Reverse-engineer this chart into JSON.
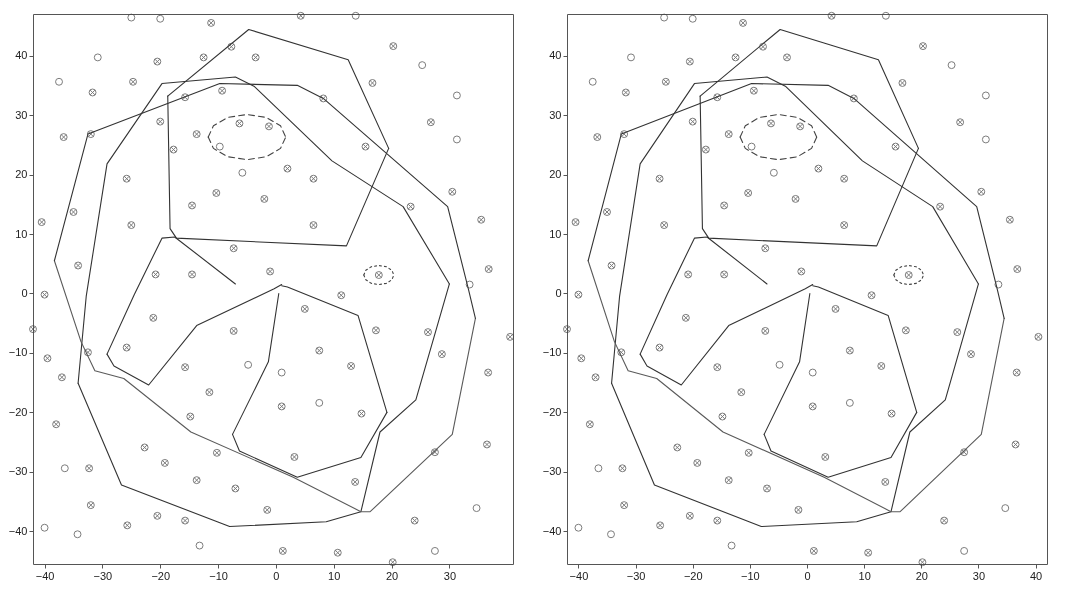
{
  "chart_data": [
    {
      "type": "scatter",
      "xlim": [
        -42,
        41
      ],
      "ylim": [
        -45.5,
        47
      ],
      "xticks": [
        -40,
        -30,
        -20,
        -10,
        0,
        10,
        20,
        30
      ],
      "yticks": [
        -40,
        -30,
        -20,
        -10,
        0,
        10,
        20,
        30,
        40
      ],
      "grid": false,
      "series": [
        {
          "type": "scatter",
          "marker": "circle",
          "color": "#444444",
          "x": [
            -25,
            -20,
            -11.2,
            4.3,
            13.8,
            -30.8,
            -20.5,
            -12.5,
            -7.7,
            -3.5,
            20.3,
            25.3,
            -37.5,
            -24.7,
            -31.7,
            16.7,
            31.3,
            -9.3,
            -15.7,
            8.2,
            -20,
            26.8,
            -36.7,
            -32,
            -13.7,
            -6.3,
            -1.2,
            -9.7,
            -17.7,
            15.5,
            31.3,
            -5.8,
            2,
            6.5,
            -25.8,
            -10.3,
            -2,
            -14.5,
            30.5,
            23.3,
            -35,
            -40.5,
            -25,
            6.5,
            35.5,
            -7.3,
            -34.2,
            -20.8,
            -14.5,
            -1,
            17.8,
            36.8,
            33.5,
            -40,
            11.3,
            -42,
            40.5,
            -21.2,
            5,
            -7.3,
            17.3,
            26.3,
            -39.5,
            -32.5,
            -25.8,
            28.7,
            -37,
            -15.7,
            -4.8,
            7.5,
            13,
            1,
            36.7,
            -11.5,
            -14.8,
            1,
            7.5,
            14.8,
            -38,
            -22.7,
            -10.2,
            3.2,
            36.5,
            27.5,
            -19.2,
            -36.5,
            -32.3,
            -13.7,
            -7,
            13.7,
            -32,
            -1.5,
            34.7,
            -20.5,
            -15.7,
            -25.7,
            24,
            -40,
            -34.3,
            -13.2,
            1.2,
            10.7,
            27.5,
            20.2
          ],
          "values": [
            46.4,
            46.2,
            45.5,
            46.7,
            46.7,
            39.7,
            39,
            39.7,
            41.5,
            39.7,
            41.6,
            38.4,
            35.6,
            35.6,
            33.8,
            35.4,
            33.3,
            34.1,
            33,
            32.8,
            28.9,
            28.8,
            26.3,
            26.8,
            26.8,
            28.6,
            28.1,
            24.7,
            24.2,
            24.7,
            25.9,
            20.3,
            21,
            19.3,
            19.3,
            16.9,
            15.9,
            14.8,
            17.1,
            14.6,
            13.7,
            12,
            11.5,
            11.5,
            12.4,
            7.6,
            4.7,
            3.2,
            3.2,
            3.7,
            3.1,
            4.1,
            1.5,
            -0.2,
            -0.3,
            -6,
            -7.3,
            -4.1,
            -2.6,
            -6.3,
            -6.2,
            -6.5,
            -10.9,
            -9.9,
            -9.1,
            -10.2,
            -14.1,
            -12.4,
            -12,
            -9.6,
            -12.2,
            -13.3,
            -13.3,
            -16.6,
            -20.7,
            -19,
            -18.4,
            -20.2,
            -22,
            -25.9,
            -26.8,
            -27.5,
            -25.4,
            -26.7,
            -28.5,
            -29.4,
            -29.4,
            -31.4,
            -32.8,
            -31.7,
            -35.6,
            -36.4,
            -36.1,
            -37.4,
            -38.2,
            -39,
            -38.2,
            -39.4,
            -40.5,
            -42.4,
            -43.3,
            -43.6,
            -43.3,
            -45.2
          ]
        },
        {
          "type": "scatter",
          "marker": "cross",
          "color": "#444444",
          "x": [
            -11.2,
            4.3,
            -20.5,
            -12.5,
            -7.7,
            -3.5,
            20.3,
            -24.7,
            -31.7,
            16.7,
            -9.3,
            -15.7,
            8.2,
            -20,
            26.8,
            -36.7,
            -32,
            -13.7,
            -6.3,
            -1.2,
            -17.7,
            15.5,
            2,
            6.5,
            -25.8,
            -10.3,
            -2,
            -14.5,
            30.5,
            23.3,
            -35,
            -40.5,
            -25,
            6.5,
            35.5,
            -7.3,
            -34.2,
            -20.8,
            -14.5,
            -1,
            17.8,
            36.8,
            -40,
            11.3,
            -42,
            40.5,
            -21.2,
            5,
            -7.3,
            17.3,
            26.3,
            -39.5,
            -32.5,
            -25.8,
            28.7,
            -37,
            -15.7,
            7.5,
            13,
            36.7,
            -11.5,
            -14.8,
            1,
            14.8,
            -38,
            -22.7,
            -10.2,
            3.2,
            36.5,
            27.5,
            -19.2,
            -32.3,
            -13.7,
            -7,
            13.7,
            -32,
            -1.5,
            -20.5,
            -15.7,
            -25.7,
            24,
            1.2,
            10.7,
            20.2
          ],
          "values": [
            45.5,
            46.7,
            39,
            39.7,
            41.5,
            39.7,
            41.6,
            35.6,
            33.8,
            35.4,
            34.1,
            33,
            32.8,
            28.9,
            28.8,
            26.3,
            26.8,
            26.8,
            28.6,
            28.1,
            24.2,
            24.7,
            21,
            19.3,
            19.3,
            16.9,
            15.9,
            14.8,
            17.1,
            14.6,
            13.7,
            12,
            11.5,
            11.5,
            12.4,
            7.6,
            4.7,
            3.2,
            3.2,
            3.7,
            3.1,
            4.1,
            -0.2,
            -0.3,
            -6,
            -7.3,
            -4.1,
            -2.6,
            -6.3,
            -6.2,
            -6.5,
            -10.9,
            -9.9,
            -9.1,
            -10.2,
            -14.1,
            -12.4,
            -9.6,
            -12.2,
            -13.3,
            -16.6,
            -20.7,
            -19,
            -20.2,
            -22,
            -25.9,
            -26.8,
            -27.5,
            -25.4,
            -26.7,
            -28.5,
            -29.4,
            -31.4,
            -32.8,
            -31.7,
            -35.6,
            -36.4,
            -37.4,
            -38.2,
            -39,
            -38.2,
            -43.3,
            -43.6,
            -45.2
          ]
        },
        {
          "type": "line",
          "line_style": "solid",
          "color": "#333333",
          "x": [
            -18.7,
            -4.7,
            12.5,
            19.5
          ],
          "values": [
            33.2,
            44.4,
            39.3,
            24.4
          ]
        },
        {
          "type": "line",
          "line_style": "solid",
          "color": "#333333",
          "x": [
            -18.7,
            -18.3,
            -17.2,
            12.2,
            19.5
          ],
          "values": [
            33.2,
            10.9,
            9.3,
            8,
            24.4
          ]
        },
        {
          "type": "line",
          "line_style": "solid",
          "color": "#333333",
          "x": [
            -38.3,
            -32.5,
            -9.7,
            3.7,
            8.2,
            29.7,
            33.3,
            34.5
          ],
          "values": [
            5.5,
            26.8,
            35.3,
            35,
            32.8,
            14.6,
            0.7,
            -4.2
          ]
        },
        {
          "type": "line",
          "line_style": "solid",
          "color": "#5a5a5a",
          "x": [
            -38.3,
            -33.7,
            -31.3,
            -26.3,
            -14.7,
            3,
            14.7,
            16.3,
            30.5,
            34.5
          ],
          "values": [
            5.5,
            -8.1,
            -13,
            -14.3,
            -23.3,
            -30.9,
            -36.7,
            -36.7,
            -23.7,
            -4.2
          ]
        },
        {
          "type": "line",
          "line_style": "solid",
          "color": "#333333",
          "x": [
            -34.2,
            -32.8,
            -29.2,
            -19.7,
            -7,
            -3.7,
            9.7,
            22,
            30
          ],
          "values": [
            -15.1,
            -0.5,
            21.8,
            35.3,
            36.4,
            34.8,
            22.3,
            14.6,
            1.6
          ]
        },
        {
          "type": "line",
          "line_style": "solid",
          "color": "#333333",
          "x": [
            -34.2,
            -26.7,
            -8,
            8.7,
            14.7,
            18,
            24.2,
            30
          ],
          "values": [
            -15.1,
            -32.2,
            -39.2,
            -38.4,
            -36.7,
            -23.3,
            -17.9,
            1.6
          ]
        },
        {
          "type": "line",
          "line_style": "solid",
          "color": "#333333",
          "x": [
            -7.5,
            -1.3,
            0.5
          ],
          "values": [
            -23.7,
            -11.5,
            0
          ]
        },
        {
          "type": "line",
          "line_style": "solid",
          "color": "#333333",
          "x": [
            -7.5,
            -6.3,
            3.7,
            14.7,
            19.2
          ],
          "values": [
            -23.7,
            -26.5,
            -30.9,
            -27.6,
            -20
          ]
        },
        {
          "type": "line",
          "line_style": "solid",
          "color": "#333333",
          "x": [
            1,
            2,
            14.2,
            19.2
          ],
          "values": [
            1.3,
            1.1,
            -3.7,
            -20
          ]
        },
        {
          "type": "line",
          "line_style": "solid",
          "color": "#333333",
          "x": [
            -29.2,
            -24.5,
            -19.7,
            -17.5,
            -7
          ],
          "values": [
            -10.2,
            -0.2,
            9.3,
            9.5,
            1.6
          ]
        },
        {
          "type": "line",
          "line_style": "solid",
          "color": "#333333",
          "x": [
            -29.2,
            -28,
            -22,
            -13.7,
            -0.3,
            1
          ],
          "values": [
            -10.2,
            -12.2,
            -15.4,
            -5.4,
            0.8,
            1.5
          ]
        },
        {
          "type": "line",
          "line_style": "dashed",
          "color": "#444444",
          "x": [
            -11.7,
            -10.8,
            -8.35,
            -5,
            -1.65,
            0.8,
            1.7
          ],
          "values": [
            26.3,
            28.2,
            29.6,
            30.1,
            29.6,
            28.2,
            26.3
          ]
        },
        {
          "type": "line",
          "line_style": "dashed",
          "color": "#444444",
          "x": [
            -11.7,
            -10.8,
            -8.35,
            -5,
            -1.65,
            0.8,
            1.7
          ],
          "values": [
            26.3,
            24.4,
            23,
            22.5,
            23,
            24.4,
            26.3
          ]
        },
        {
          "type": "line",
          "line_style": "dotted",
          "color": "#444444",
          "x": [
            15.2,
            15.55,
            16.5,
            17.8,
            19.1,
            20.05,
            20.4
          ],
          "values": [
            3.1,
            3.9,
            4.5,
            4.7,
            4.5,
            3.9,
            3.1
          ]
        },
        {
          "type": "line",
          "line_style": "dotted",
          "color": "#444444",
          "x": [
            15.2,
            15.55,
            16.5,
            17.8,
            19.1,
            20.05,
            20.4
          ],
          "values": [
            3.1,
            2.3,
            1.7,
            1.5,
            1.7,
            2.3,
            3.1
          ]
        }
      ]
    },
    {
      "type": "scatter",
      "xlim": [
        -42,
        42
      ],
      "ylim": [
        -45.5,
        47
      ],
      "xticks": [
        -40,
        -30,
        -20,
        -10,
        0,
        10,
        20,
        30,
        40
      ],
      "yticks": [
        -40,
        -30,
        -20,
        -10,
        0,
        10,
        20,
        30,
        40
      ],
      "grid": false,
      "series": [
        {
          "type": "scatter",
          "marker": "circle",
          "color": "#444444",
          "x": [
            -25,
            -20,
            -11.2,
            4.3,
            13.8,
            -30.8,
            -20.5,
            -12.5,
            -7.7,
            -3.5,
            20.3,
            25.3,
            -37.5,
            -24.7,
            -31.7,
            16.7,
            31.3,
            -9.3,
            -15.7,
            8.2,
            -20,
            26.8,
            -36.7,
            -32,
            -13.7,
            -6.3,
            -1.2,
            -9.7,
            -17.7,
            15.5,
            31.3,
            -5.8,
            2,
            6.5,
            -25.8,
            -10.3,
            -2,
            -14.5,
            30.5,
            23.3,
            -35,
            -40.5,
            -25,
            6.5,
            35.5,
            -7.3,
            -34.2,
            -20.8,
            -14.5,
            -1,
            17.8,
            36.8,
            33.5,
            -40,
            11.3,
            -42,
            40.5,
            -21.2,
            5,
            -7.3,
            17.3,
            26.3,
            -39.5,
            -32.5,
            -25.8,
            28.7,
            -37,
            -15.7,
            -4.8,
            7.5,
            13,
            1,
            36.7,
            -11.5,
            -14.8,
            1,
            7.5,
            14.8,
            -38,
            -22.7,
            -10.2,
            3.2,
            36.5,
            27.5,
            -19.2,
            -36.5,
            -32.3,
            -13.7,
            -7,
            13.7,
            -32,
            -1.5,
            34.7,
            -20.5,
            -15.7,
            -25.7,
            24,
            -40,
            -34.3,
            -13.2,
            1.2,
            10.7,
            27.5,
            20.2
          ],
          "values": [
            46.4,
            46.2,
            45.5,
            46.7,
            46.7,
            39.7,
            39,
            39.7,
            41.5,
            39.7,
            41.6,
            38.4,
            35.6,
            35.6,
            33.8,
            35.4,
            33.3,
            34.1,
            33,
            32.8,
            28.9,
            28.8,
            26.3,
            26.8,
            26.8,
            28.6,
            28.1,
            24.7,
            24.2,
            24.7,
            25.9,
            20.3,
            21,
            19.3,
            19.3,
            16.9,
            15.9,
            14.8,
            17.1,
            14.6,
            13.7,
            12,
            11.5,
            11.5,
            12.4,
            7.6,
            4.7,
            3.2,
            3.2,
            3.7,
            3.1,
            4.1,
            1.5,
            -0.2,
            -0.3,
            -6,
            -7.3,
            -4.1,
            -2.6,
            -6.3,
            -6.2,
            -6.5,
            -10.9,
            -9.9,
            -9.1,
            -10.2,
            -14.1,
            -12.4,
            -12,
            -9.6,
            -12.2,
            -13.3,
            -13.3,
            -16.6,
            -20.7,
            -19,
            -18.4,
            -20.2,
            -22,
            -25.9,
            -26.8,
            -27.5,
            -25.4,
            -26.7,
            -28.5,
            -29.4,
            -29.4,
            -31.4,
            -32.8,
            -31.7,
            -35.6,
            -36.4,
            -36.1,
            -37.4,
            -38.2,
            -39,
            -38.2,
            -39.4,
            -40.5,
            -42.4,
            -43.3,
            -43.6,
            -43.3,
            -45.2
          ]
        },
        {
          "type": "scatter",
          "marker": "cross",
          "color": "#444444",
          "x": [
            -11.2,
            4.3,
            -20.5,
            -12.5,
            -7.7,
            -3.5,
            20.3,
            -24.7,
            -31.7,
            16.7,
            -9.3,
            -15.7,
            8.2,
            -20,
            26.8,
            -36.7,
            -32,
            -13.7,
            -6.3,
            -1.2,
            -17.7,
            15.5,
            2,
            6.5,
            -25.8,
            -10.3,
            -2,
            -14.5,
            30.5,
            23.3,
            -35,
            -40.5,
            -25,
            6.5,
            35.5,
            -7.3,
            -34.2,
            -20.8,
            -14.5,
            -1,
            17.8,
            36.8,
            -40,
            11.3,
            -42,
            40.5,
            -21.2,
            5,
            -7.3,
            17.3,
            26.3,
            -39.5,
            -32.5,
            -25.8,
            28.7,
            -37,
            -15.7,
            7.5,
            13,
            36.7,
            -11.5,
            -14.8,
            1,
            14.8,
            -38,
            -22.7,
            -10.2,
            3.2,
            36.5,
            27.5,
            -19.2,
            -32.3,
            -13.7,
            -7,
            13.7,
            -32,
            -1.5,
            -20.5,
            -15.7,
            -25.7,
            24,
            1.2,
            10.7,
            20.2
          ],
          "values": [
            45.5,
            46.7,
            39,
            39.7,
            41.5,
            39.7,
            41.6,
            35.6,
            33.8,
            35.4,
            34.1,
            33,
            32.8,
            28.9,
            28.8,
            26.3,
            26.8,
            26.8,
            28.6,
            28.1,
            24.2,
            24.7,
            21,
            19.3,
            19.3,
            16.9,
            15.9,
            14.8,
            17.1,
            14.6,
            13.7,
            12,
            11.5,
            11.5,
            12.4,
            7.6,
            4.7,
            3.2,
            3.2,
            3.7,
            3.1,
            4.1,
            -0.2,
            -0.3,
            -6,
            -7.3,
            -4.1,
            -2.6,
            -6.3,
            -6.2,
            -6.5,
            -10.9,
            -9.9,
            -9.1,
            -10.2,
            -14.1,
            -12.4,
            -9.6,
            -12.2,
            -13.3,
            -16.6,
            -20.7,
            -19,
            -20.2,
            -22,
            -25.9,
            -26.8,
            -27.5,
            -25.4,
            -26.7,
            -28.5,
            -29.4,
            -31.4,
            -32.8,
            -31.7,
            -35.6,
            -36.4,
            -37.4,
            -38.2,
            -39,
            -38.2,
            -43.3,
            -43.6,
            -45.2
          ]
        },
        {
          "type": "line",
          "line_style": "solid",
          "color": "#333333",
          "x": [
            -18.7,
            -4.7,
            12.5,
            19.5
          ],
          "values": [
            33.2,
            44.4,
            39.3,
            24.4
          ]
        },
        {
          "type": "line",
          "line_style": "solid",
          "color": "#333333",
          "x": [
            -18.7,
            -18.3,
            -17.2,
            12.2,
            19.5
          ],
          "values": [
            33.2,
            10.9,
            9.3,
            8,
            24.4
          ]
        },
        {
          "type": "line",
          "line_style": "solid",
          "color": "#333333",
          "x": [
            -38.3,
            -32.5,
            -9.7,
            3.7,
            8.2,
            29.7,
            33.3,
            34.5
          ],
          "values": [
            5.5,
            26.8,
            35.3,
            35,
            32.8,
            14.6,
            0.7,
            -4.2
          ]
        },
        {
          "type": "line",
          "line_style": "solid",
          "color": "#5a5a5a",
          "x": [
            -38.3,
            -33.7,
            -31.3,
            -26.3,
            -14.7,
            3,
            14.7,
            16.3,
            30.5,
            34.5
          ],
          "values": [
            5.5,
            -8.1,
            -13,
            -14.3,
            -23.3,
            -30.9,
            -36.7,
            -36.7,
            -23.7,
            -4.2
          ]
        },
        {
          "type": "line",
          "line_style": "solid",
          "color": "#333333",
          "x": [
            -34.2,
            -32.8,
            -29.2,
            -19.7,
            -7,
            -3.7,
            9.7,
            22,
            30
          ],
          "values": [
            -15.1,
            -0.5,
            21.8,
            35.3,
            36.4,
            34.8,
            22.3,
            14.6,
            1.6
          ]
        },
        {
          "type": "line",
          "line_style": "solid",
          "color": "#333333",
          "x": [
            -34.2,
            -26.7,
            -8,
            8.7,
            14.7,
            18,
            24.2,
            30
          ],
          "values": [
            -15.1,
            -32.2,
            -39.2,
            -38.4,
            -36.7,
            -23.3,
            -17.9,
            1.6
          ]
        },
        {
          "type": "line",
          "line_style": "solid",
          "color": "#333333",
          "x": [
            -7.5,
            -1.3,
            0.5
          ],
          "values": [
            -23.7,
            -11.5,
            0
          ]
        },
        {
          "type": "line",
          "line_style": "solid",
          "color": "#333333",
          "x": [
            -7.5,
            -6.3,
            3.7,
            14.7,
            19.2
          ],
          "values": [
            -23.7,
            -26.5,
            -30.9,
            -27.6,
            -20
          ]
        },
        {
          "type": "line",
          "line_style": "solid",
          "color": "#333333",
          "x": [
            1,
            2,
            14.2,
            19.2
          ],
          "values": [
            1.3,
            1.1,
            -3.7,
            -20
          ]
        },
        {
          "type": "line",
          "line_style": "solid",
          "color": "#333333",
          "x": [
            -29.2,
            -24.5,
            -19.7,
            -17.5,
            -7
          ],
          "values": [
            -10.2,
            -0.2,
            9.3,
            9.5,
            1.6
          ]
        },
        {
          "type": "line",
          "line_style": "solid",
          "color": "#333333",
          "x": [
            -29.2,
            -28,
            -22,
            -13.7,
            -0.3,
            1
          ],
          "values": [
            -10.2,
            -12.2,
            -15.4,
            -5.4,
            0.8,
            1.5
          ]
        },
        {
          "type": "line",
          "line_style": "dashed",
          "color": "#444444",
          "x": [
            -11.7,
            -10.8,
            -8.35,
            -5,
            -1.65,
            0.8,
            1.7
          ],
          "values": [
            26.3,
            28.2,
            29.6,
            30.1,
            29.6,
            28.2,
            26.3
          ]
        },
        {
          "type": "line",
          "line_style": "dashed",
          "color": "#444444",
          "x": [
            -11.7,
            -10.8,
            -8.35,
            -5,
            -1.65,
            0.8,
            1.7
          ],
          "values": [
            26.3,
            24.4,
            23,
            22.5,
            23,
            24.4,
            26.3
          ]
        },
        {
          "type": "line",
          "line_style": "dotted",
          "color": "#444444",
          "x": [
            15.2,
            15.55,
            16.5,
            17.8,
            19.1,
            20.05,
            20.4
          ],
          "values": [
            3.1,
            3.9,
            4.5,
            4.7,
            4.5,
            3.9,
            3.1
          ]
        },
        {
          "type": "line",
          "line_style": "dotted",
          "color": "#444444",
          "x": [
            15.2,
            15.55,
            16.5,
            17.8,
            19.1,
            20.05,
            20.4
          ],
          "values": [
            3.1,
            2.3,
            1.7,
            1.5,
            1.7,
            2.3,
            3.1
          ]
        }
      ]
    }
  ]
}
